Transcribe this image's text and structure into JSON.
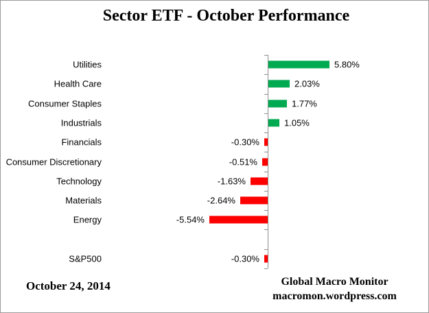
{
  "title": "Sector ETF - October Performance",
  "chart_data": {
    "type": "bar",
    "orientation": "horizontal",
    "categories": [
      "Utilities",
      "Health Care",
      "Consumer Staples",
      "Industrials",
      "Financials",
      "Consumer Discretionary",
      "Technology",
      "Materials",
      "Energy"
    ],
    "values": [
      5.8,
      2.03,
      1.77,
      1.05,
      -0.3,
      -0.51,
      -1.63,
      -2.64,
      -5.54
    ],
    "value_labels": [
      "5.80%",
      "2.03%",
      "1.77%",
      "1.05%",
      "-0.30%",
      "-0.51%",
      "-1.63%",
      "-2.64%",
      "-5.54%"
    ],
    "benchmark": {
      "label": "S&P500",
      "value": -0.3,
      "value_label": "-0.30%"
    },
    "title": "Sector ETF - October Performance",
    "xlabel": "",
    "ylabel": "",
    "grid": false,
    "legend": "none",
    "positive_color": "#00AA50",
    "negative_color": "#FF0000",
    "axis_color": "#8C8C8C"
  },
  "footer": {
    "date": "October 24, 2014",
    "source_line1": "Global Macro Monitor",
    "source_line2": "macromon.wordpress.com"
  }
}
